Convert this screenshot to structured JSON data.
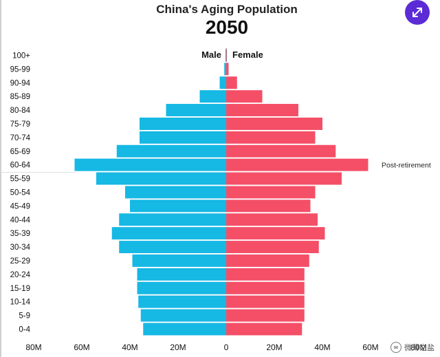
{
  "colors": {
    "male": "#16b8e4",
    "female": "#f44f67",
    "expand_button": "#5b2bd6",
    "axis_text": "#111111",
    "annotation_text": "#222222"
  },
  "watermark": "微薄之盐",
  "expand_icon": "expand-arrows-icon",
  "chart_data": {
    "type": "bar",
    "orientation": "horizontal-population-pyramid",
    "title": "China's Aging Population",
    "subtitle": "2050",
    "categories": [
      "100+",
      "95-99",
      "90-94",
      "85-89",
      "80-84",
      "75-79",
      "70-74",
      "65-69",
      "60-64",
      "55-59",
      "50-54",
      "45-49",
      "40-44",
      "35-39",
      "30-34",
      "25-29",
      "20-24",
      "15-19",
      "10-14",
      "5-9",
      "0-4"
    ],
    "series": [
      {
        "name": "Male",
        "values": [
          0.3,
          0.8,
          2.7,
          11,
          25,
          36,
          36,
          45.5,
          63,
          54,
          42,
          40,
          44.5,
          47.5,
          44.5,
          39,
          37,
          37,
          36.5,
          35.5,
          34.5
        ]
      },
      {
        "name": "Female",
        "values": [
          0.3,
          1,
          4.5,
          15,
          30,
          40,
          37,
          45.5,
          59,
          48,
          37,
          35,
          38,
          41,
          38.5,
          34.5,
          32.5,
          32.5,
          32.5,
          32.5,
          31.5
        ]
      }
    ],
    "xlim": [
      -80,
      80
    ],
    "x_ticks": [
      "80M",
      "60M",
      "40M",
      "20M",
      "0",
      "20M",
      "40M",
      "60M",
      "80M"
    ],
    "annotations": [
      {
        "category": "60-64",
        "text": "Post-retirement"
      }
    ],
    "grid": false,
    "legend": "top-center"
  }
}
